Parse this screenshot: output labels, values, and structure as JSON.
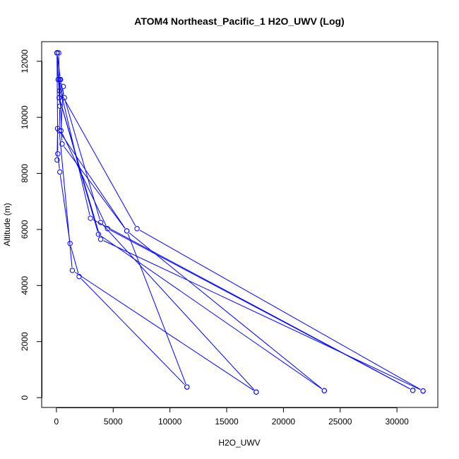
{
  "chart_data": {
    "type": "line",
    "title": "ATOM4 Northeast_Pacific_1 H2O_UWV (Log)",
    "xlabel": "H2O_UWV",
    "ylabel": "Altitude (m)",
    "xlim": [
      -1300,
      33600
    ],
    "ylim": [
      -350,
      12700
    ],
    "xticks": [
      0,
      5000,
      10000,
      15000,
      20000,
      25000,
      30000
    ],
    "yticks": [
      0,
      2000,
      4000,
      6000,
      8000,
      10000,
      12000
    ],
    "series_color": "#0000ff",
    "series": [
      {
        "points": [
          [
            11500,
            380
          ],
          [
            2000,
            4320
          ],
          [
            1200,
            5500
          ],
          [
            300,
            8050
          ],
          [
            120,
            8700
          ],
          [
            50,
            12300
          ]
        ]
      },
      {
        "points": [
          [
            17600,
            200
          ],
          [
            1400,
            4540
          ],
          [
            250,
            9520
          ],
          [
            300,
            10400
          ],
          [
            50,
            12300
          ]
        ]
      },
      {
        "points": [
          [
            23600,
            250
          ],
          [
            3700,
            5830
          ],
          [
            250,
            10700
          ],
          [
            350,
            11350
          ],
          [
            60,
            12300
          ]
        ]
      },
      {
        "points": [
          [
            31400,
            260
          ],
          [
            3000,
            6400
          ],
          [
            150,
            11350
          ],
          [
            50,
            12300
          ]
        ]
      },
      {
        "points": [
          [
            32300,
            240
          ],
          [
            7100,
            6030
          ],
          [
            280,
            10950
          ],
          [
            200,
            12300
          ]
        ]
      },
      {
        "points": [
          [
            31400,
            260
          ],
          [
            4500,
            6030
          ],
          [
            400,
            9520
          ],
          [
            600,
            11100
          ]
        ]
      },
      {
        "points": [
          [
            32300,
            240
          ],
          [
            3900,
            5650
          ],
          [
            250,
            10700
          ],
          [
            350,
            11350
          ]
        ]
      },
      {
        "points": [
          [
            23600,
            250
          ],
          [
            6200,
            5950
          ],
          [
            500,
            9050
          ],
          [
            250,
            11350
          ]
        ]
      },
      {
        "points": [
          [
            17600,
            200
          ],
          [
            3900,
            6250
          ],
          [
            700,
            10700
          ],
          [
            350,
            11350
          ]
        ]
      },
      {
        "points": [
          [
            11500,
            380
          ],
          [
            6200,
            5950
          ],
          [
            100,
            9600
          ],
          [
            60,
            8480
          ]
        ]
      }
    ]
  }
}
